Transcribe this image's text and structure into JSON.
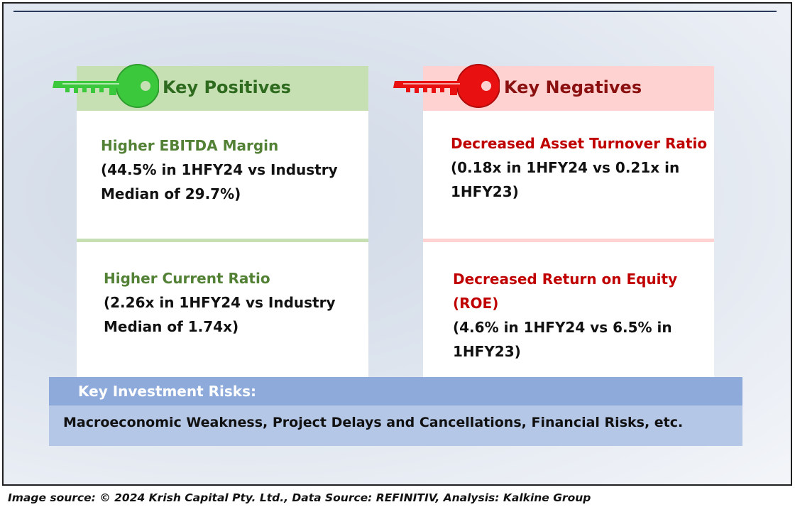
{
  "positives": {
    "header": "Key Positives",
    "items": [
      {
        "title": "Higher EBITDA Margin",
        "detail_line1": "(44.5% in 1HFY24 vs Industry",
        "detail_line2": "Median of 29.7%)"
      },
      {
        "title": "Higher Current Ratio",
        "detail_line1": "(2.26x in 1HFY24 vs Industry",
        "detail_line2": "Median of 1.74x)"
      }
    ]
  },
  "negatives": {
    "header": "Key Negatives",
    "items": [
      {
        "title": "Decreased Asset Turnover Ratio",
        "detail_line1": "(0.18x in 1HFY24 vs 0.21x in",
        "detail_line2": "1HFY23)"
      },
      {
        "title_line1": "Decreased Return on Equity",
        "title_line2": "(ROE)",
        "detail_line1": "(4.6% in 1HFY24 vs 6.5% in",
        "detail_line2": "1HFY23)"
      }
    ]
  },
  "risks": {
    "header": "Key Investment Risks:",
    "text": "Macroeconomic Weakness, Project Delays and Cancellations, Financial Risks, etc."
  },
  "source": "Image source: © 2024 Krish Capital Pty. Ltd., Data Source: REFINITIV, Analysis: Kalkine Group",
  "colors": {
    "positive_accent": "#538135",
    "positive_header_bg": "#c6e0b4",
    "positive_key": "#3cc83c",
    "negative_accent": "#c00000",
    "negative_header_bg": "#ffd2d2",
    "negative_key": "#e81010",
    "risk_header_bg": "#8eaadb",
    "risk_body_bg": "#b4c7e7"
  },
  "icons": [
    "green-key-icon",
    "red-key-icon"
  ]
}
